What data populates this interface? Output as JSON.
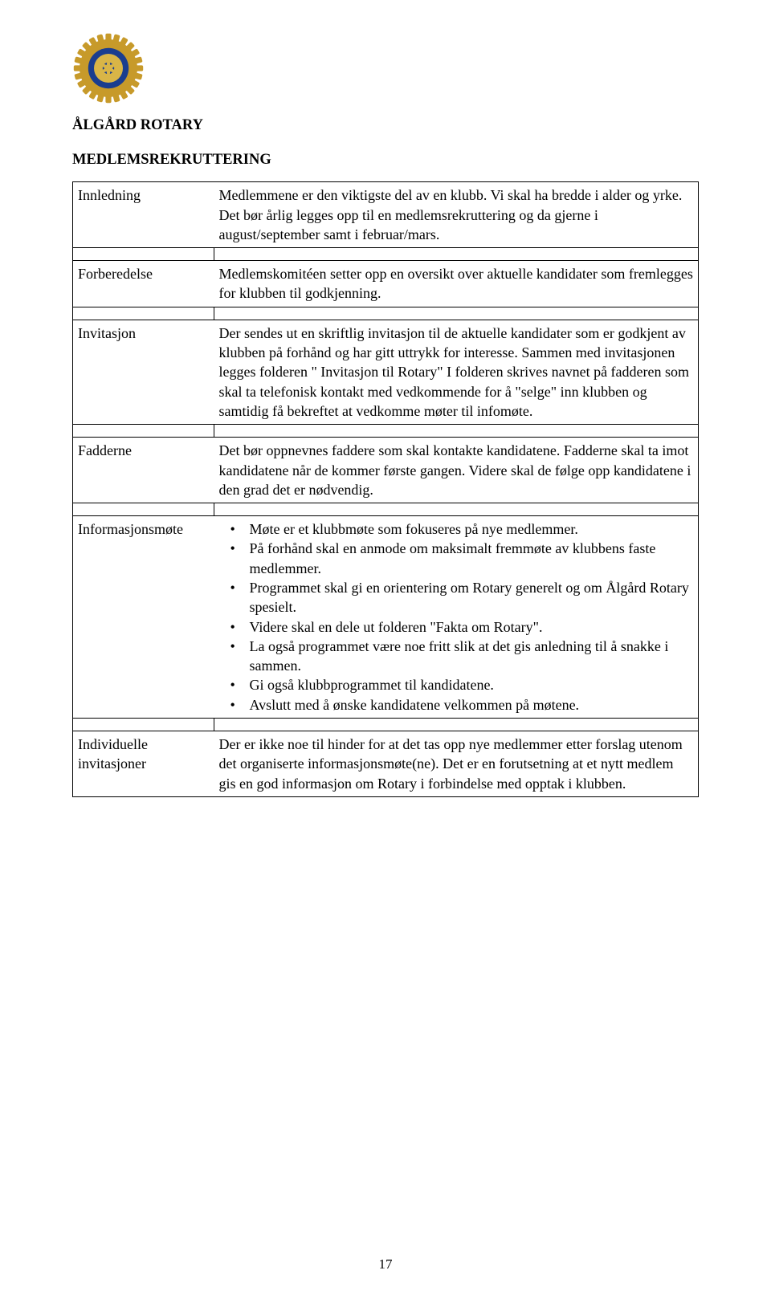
{
  "org_name": "ÅLGÅRD ROTARY",
  "section_title": "MEDLEMSREKRUTTERING",
  "page_number": "17",
  "logo": {
    "outer_color": "#c79a2a",
    "inner_color": "#1a3d8f",
    "rim_color": "#d9b547"
  },
  "rows": [
    {
      "label": "Innledning",
      "text": "Medlemmene er den viktigste del av en klubb. Vi skal ha bredde i alder og yrke. Det bør årlig legges opp til en medlemsrekruttering og da gjerne i august/september samt i februar/mars."
    },
    {
      "label": "Forberedelse",
      "text": "Medlemskomitéen setter opp en oversikt over aktuelle kandidater som fremlegges for klubben til godkjenning."
    },
    {
      "label": "Invitasjon",
      "text": "Der sendes ut en skriftlig invitasjon til de aktuelle kandidater som er godkjent av klubben på forhånd og har gitt uttrykk for interesse. Sammen med invitasjonen legges folderen \" Invitasjon til Rotary\" I folderen skrives navnet på fadderen som skal ta telefonisk kontakt med vedkommende for å \"selge\" inn klubben og samtidig få bekreftet at vedkomme møter til infomøte."
    },
    {
      "label": "Fadderne",
      "text": "Det bør oppnevnes faddere som skal kontakte kandidatene. Fadderne skal ta imot kandidatene når de kommer første gangen. Videre skal de følge opp kandidatene i den grad det er nødvendig."
    },
    {
      "label": "Informasjonsmøte",
      "bullets": [
        "Møte er et klubbmøte som fokuseres på nye medlemmer.",
        "På forhånd skal en anmode om maksimalt fremmøte av klubbens faste medlemmer.",
        "Programmet skal gi en orientering om Rotary generelt og om Ålgård Rotary spesielt.",
        "Videre skal en dele ut folderen \"Fakta om Rotary\".",
        "La også programmet være noe fritt slik at det gis anledning til å snakke i sammen.",
        "Gi også klubbprogrammet til kandidatene.",
        "Avslutt med å ønske kandidatene velkommen på møtene."
      ]
    },
    {
      "label": "Individuelle invitasjoner",
      "text": "Der er ikke noe til hinder for at det tas opp nye medlemmer etter forslag utenom det organiserte informasjonsmøte(ne). Det er en forutsetning at et nytt medlem gis en god informasjon om Rotary i forbindelse med opptak i klubben."
    }
  ]
}
